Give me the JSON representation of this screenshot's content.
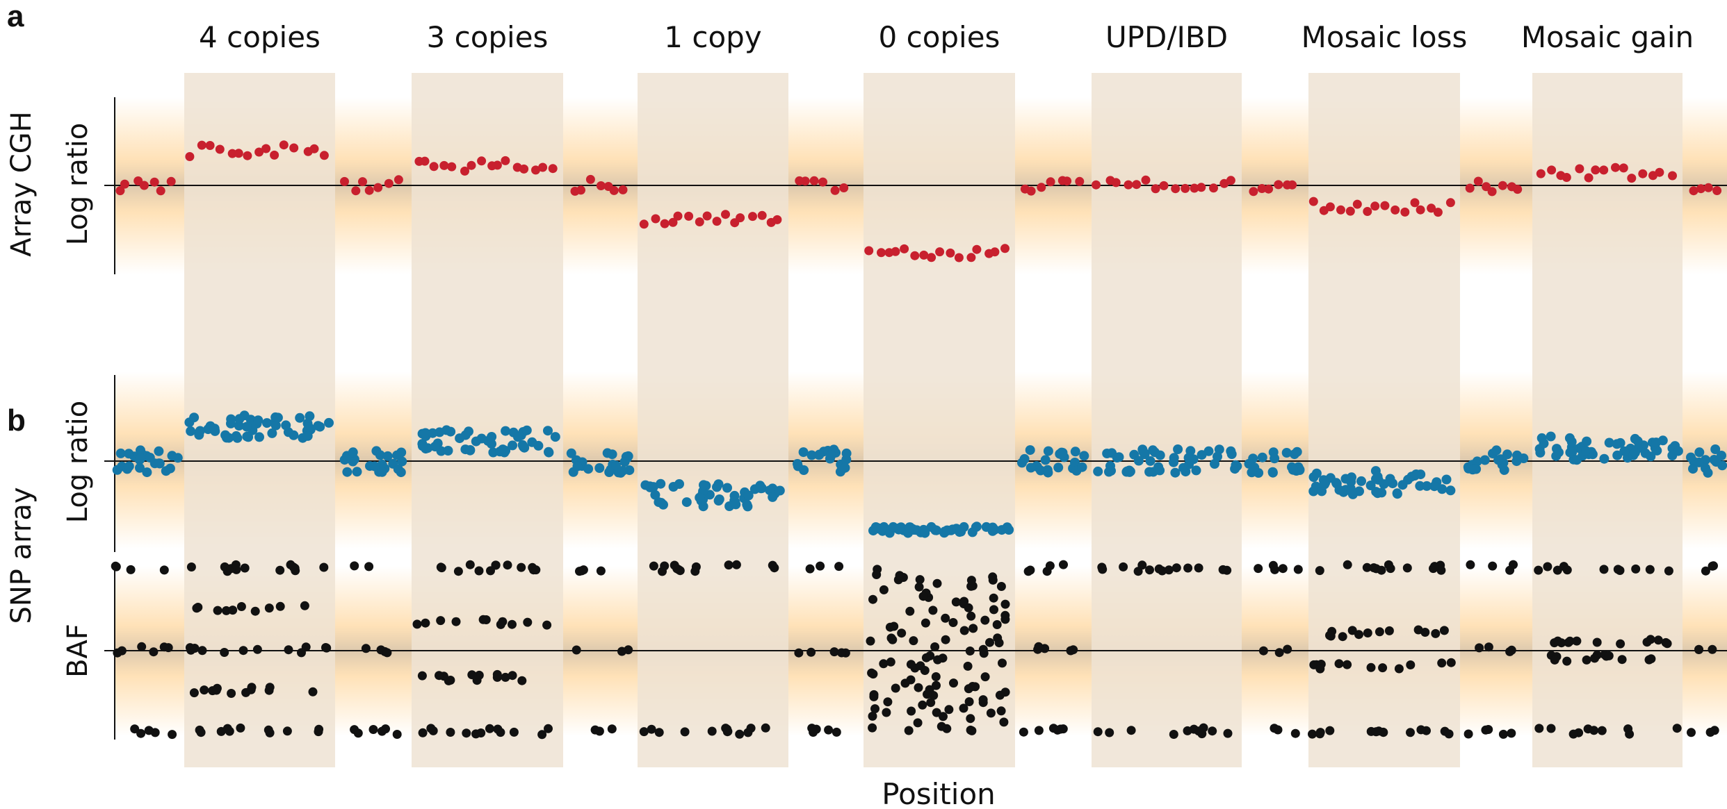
{
  "panels": {
    "a": {
      "letter": "a",
      "row_label": "Array CGH",
      "track_label": "Log ratio"
    },
    "b": {
      "letter": "b",
      "row_label": "SNP array",
      "track_labels": [
        "Log ratio",
        "BAF"
      ]
    }
  },
  "columns": [
    "4 copies",
    "3 copies",
    "1 copy",
    "0 copies",
    "UPD/IBD",
    "Mosaic loss",
    "Mosaic gain"
  ],
  "x_axis_label": "Position",
  "colors": {
    "cgh_points": "#c8202e",
    "snp_points": "#1577a7",
    "baf_points": "#111111",
    "column_band": "#efe3d3",
    "row_band_center": "#d9c3a5",
    "row_band_edge": "#ffd8a0"
  },
  "chart_data": {
    "type": "scatter",
    "segments": [
      "normal",
      "4 copies",
      "normal",
      "3 copies",
      "normal",
      "1 copy",
      "normal",
      "0 copies",
      "normal",
      "UPD/IBD",
      "normal",
      "Mosaic loss",
      "normal",
      "Mosaic gain",
      "normal"
    ],
    "array_cgh_log_ratio": [
      0,
      0.8,
      0,
      0.45,
      0,
      -0.8,
      0,
      -1.6,
      0,
      0,
      0,
      -0.5,
      0,
      0.3,
      0
    ],
    "snp_log_ratio": [
      0,
      0.8,
      0,
      0.45,
      0,
      -0.8,
      0,
      -1.6,
      0,
      0,
      0,
      -0.5,
      0,
      0.3,
      0
    ],
    "baf_levels": [
      [
        0,
        0.5,
        1
      ],
      [
        0,
        0.25,
        0.5,
        0.75,
        1
      ],
      [
        0,
        0.5,
        1
      ],
      [
        0,
        0.33,
        0.67,
        1
      ],
      [
        0,
        0.5,
        1
      ],
      [
        0,
        1
      ],
      [
        0,
        0.5,
        1
      ],
      [
        "random"
      ],
      [
        0,
        0.5,
        1
      ],
      [
        0,
        1
      ],
      [
        0,
        0.5,
        1
      ],
      [
        0,
        0.4,
        0.6,
        1
      ],
      [
        0,
        0.5,
        1
      ],
      [
        0,
        0.45,
        0.55,
        1
      ],
      [
        0,
        0.5,
        1
      ]
    ]
  }
}
